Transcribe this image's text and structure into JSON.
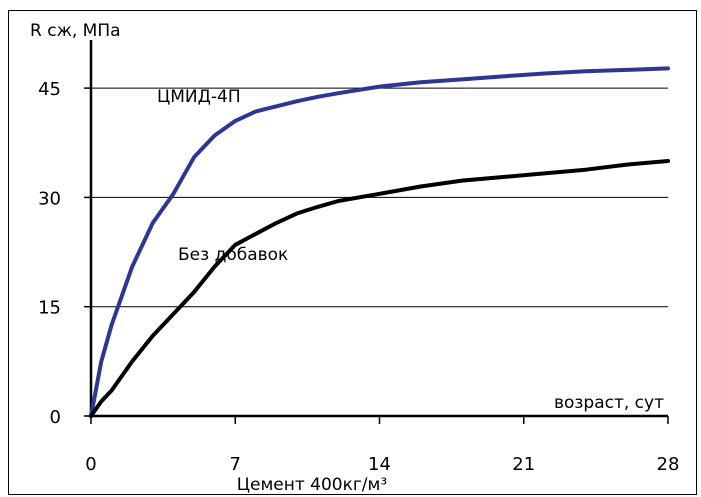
{
  "chart_data": {
    "type": "line",
    "ylabel": "R сж, МПа",
    "xlabel": "возраст, сут",
    "subtitle": "Цемент 400кг/м³",
    "xlim": [
      0,
      28
    ],
    "ylim": [
      0,
      48
    ],
    "x_ticks": [
      0,
      7,
      14,
      21,
      28
    ],
    "x_tick_labels": [
      "0",
      "7",
      "14",
      "21",
      "28"
    ],
    "y_ticks": [
      0,
      15,
      30,
      45
    ],
    "y_tick_labels": [
      "0",
      "15",
      "30",
      "45"
    ],
    "grid": "horizontal",
    "series": [
      {
        "name": "ЦМИД-4П",
        "color": "#2e3592",
        "x": [
          0,
          0.5,
          1,
          2,
          3,
          4,
          5,
          6,
          7,
          8,
          9,
          10,
          11,
          12,
          14,
          16,
          18,
          20,
          22,
          24,
          26,
          28
        ],
        "y": [
          0,
          7.5,
          12.5,
          20.5,
          26.5,
          30.5,
          35.5,
          38.5,
          40.5,
          41.8,
          42.5,
          43.2,
          43.8,
          44.3,
          45.2,
          45.8,
          46.2,
          46.6,
          47.0,
          47.3,
          47.5,
          47.7
        ]
      },
      {
        "name": "Без добавок",
        "color": "#000000",
        "x": [
          0,
          0.5,
          1,
          2,
          3,
          4,
          5,
          6,
          7,
          8,
          9,
          10,
          11,
          12,
          14,
          16,
          18,
          20,
          22,
          24,
          26,
          28
        ],
        "y": [
          0,
          2.0,
          3.5,
          7.5,
          11.0,
          14.0,
          17.0,
          20.5,
          23.5,
          25.0,
          26.5,
          27.8,
          28.7,
          29.5,
          30.5,
          31.5,
          32.3,
          32.8,
          33.3,
          33.8,
          34.5,
          35.0
        ]
      }
    ]
  }
}
